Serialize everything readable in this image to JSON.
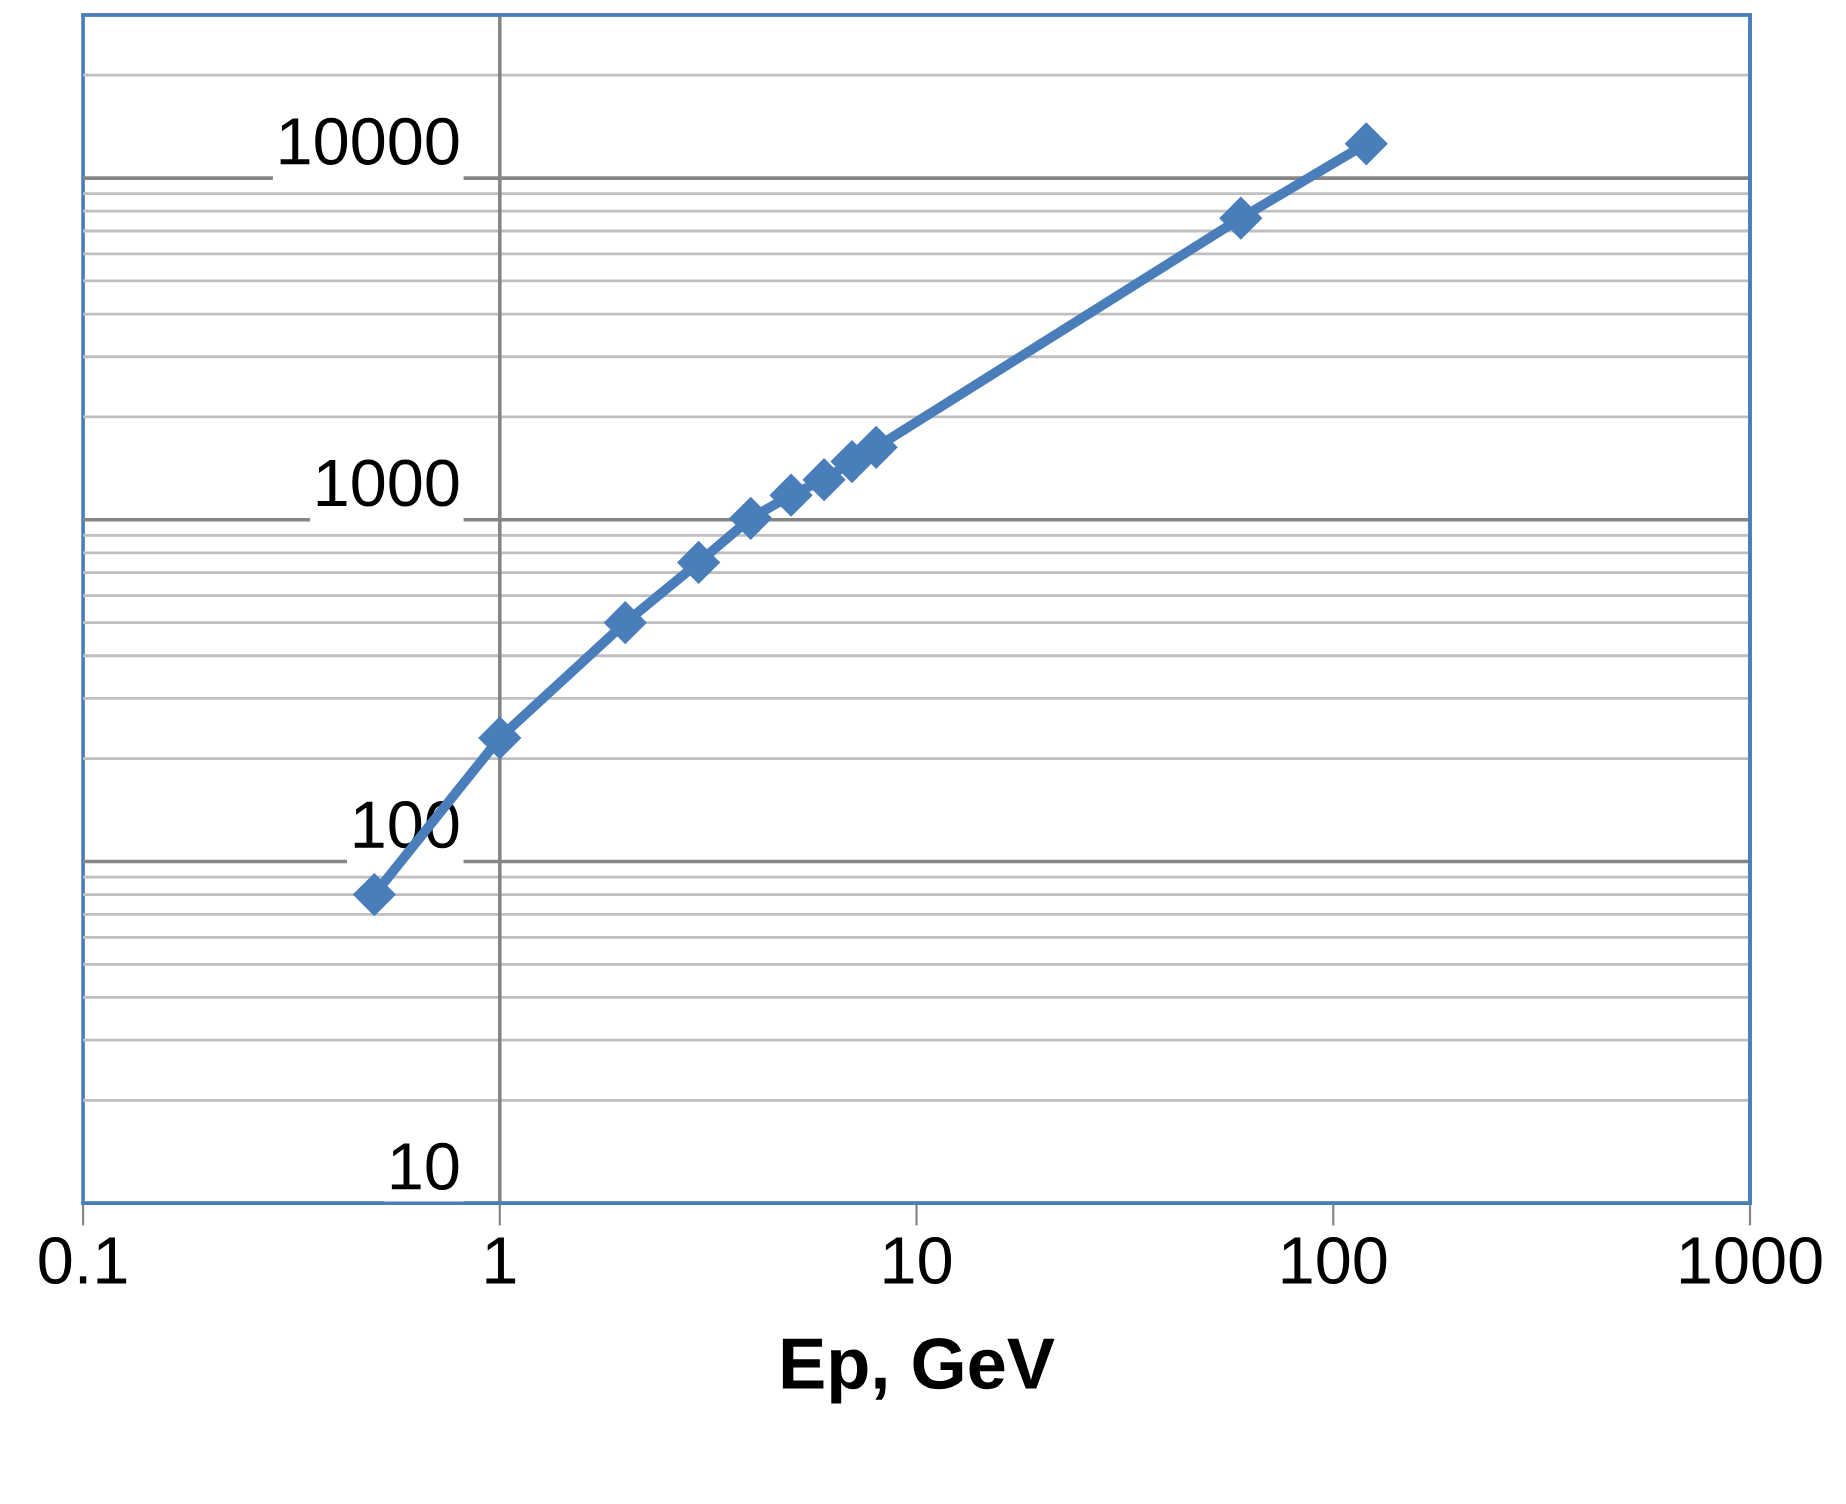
{
  "chart_data": {
    "type": "line",
    "xlabel": "Ep, GeV",
    "log": "xy",
    "x": [
      0.5,
      1,
      2,
      3,
      4,
      5,
      6,
      7,
      8,
      60,
      120
    ],
    "series": [
      {
        "color": "#4a7ebb",
        "values": [
          80,
          230,
          500,
          750,
          1010,
          1180,
          1310,
          1480,
          1630,
          7630,
          12600
        ]
      }
    ],
    "xlim": [
      0.1,
      1000
    ],
    "xticks": [
      0.1,
      1,
      10,
      100,
      1000
    ],
    "ylim": [
      10,
      30000
    ],
    "yticks": [
      10,
      100,
      1000,
      10000
    ],
    "grid": "y",
    "marker": "diamond",
    "line_style": "solid"
  }
}
